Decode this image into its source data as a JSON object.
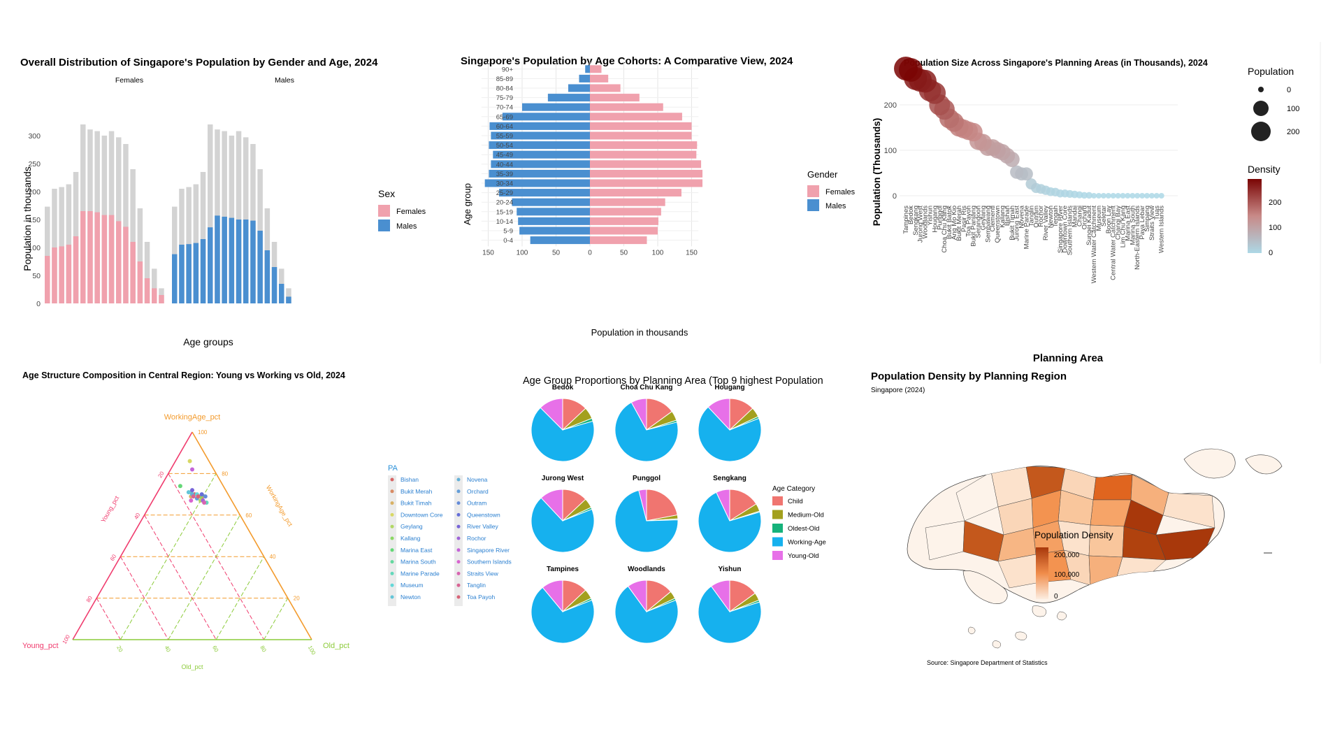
{
  "colors": {
    "female": "#F0A1AD",
    "male": "#4A8FD0",
    "grey": "#D3D3D3",
    "child": "#F07570",
    "mediumold": "#A3A01E",
    "oldestold": "#16B27B",
    "working": "#16B1EE",
    "youngold": "#E770E8",
    "young_axis": "#F03C6E",
    "working_axis": "#F39B2D",
    "old_axis": "#8CCB3A",
    "map_low": "#FCEDE0",
    "map_high": "#A8380B"
  },
  "chart_data": [
    {
      "type": "bar",
      "title": "Overall Distribution of Singapore's Population by Gender and Age, 2024",
      "xlabel": "Age groups",
      "ylabel": "Population in thousands",
      "ylim": [
        0,
        330
      ],
      "yticks": [
        "0",
        "50",
        "100",
        "150",
        "200",
        "250",
        "300"
      ],
      "legend_title": "Sex",
      "legend_position": "right",
      "facets": [
        "Females",
        "Males"
      ],
      "series": [
        {
          "name": "Females",
          "values": [
            85,
            100,
            102,
            105,
            120,
            165,
            165,
            163,
            158,
            158,
            147,
            137,
            110,
            75,
            45,
            27,
            15
          ]
        },
        {
          "name": "Males",
          "values": [
            88,
            105,
            106,
            108,
            115,
            136,
            157,
            155,
            153,
            150,
            150,
            148,
            130,
            95,
            65,
            35,
            12
          ]
        }
      ],
      "totals": [
        173,
        205,
        208,
        213,
        235,
        320,
        311,
        308,
        300,
        308,
        297,
        285,
        240,
        170,
        110,
        62,
        27
      ]
    },
    {
      "type": "bar",
      "title": "Singapore's Population by Age Cohorts: A Comparative View, 2024",
      "xlabel": "Population in thousands",
      "ylabel": "Age group",
      "xlim": [
        -160,
        160
      ],
      "xticks": [
        "150",
        "100",
        "50",
        "0",
        "50",
        "100",
        "150"
      ],
      "legend_title": "Gender",
      "legend_position": "right",
      "categories": [
        "90+",
        "85-89",
        "80-84",
        "75-79",
        "70-74",
        "65-69",
        "60-64",
        "55-59",
        "50-54",
        "45-49",
        "40-44",
        "35-39",
        "30-34",
        "25-29",
        "20-24",
        "15-19",
        "10-14",
        "5-9",
        "0-4"
      ],
      "series": [
        {
          "name": "Females",
          "values": [
            17,
            27,
            45,
            73,
            108,
            136,
            150,
            150,
            158,
            157,
            164,
            166,
            166,
            135,
            111,
            105,
            101,
            100,
            84
          ]
        },
        {
          "name": "Males",
          "values": [
            7,
            16,
            32,
            62,
            100,
            129,
            148,
            146,
            149,
            143,
            146,
            149,
            155,
            134,
            115,
            108,
            106,
            104,
            88
          ]
        }
      ]
    },
    {
      "type": "scatter",
      "title": "Population Size Across Singapore's Planning Areas (in Thousands), 2024",
      "xlabel": "Planning Area",
      "ylabel": "Population (Thousands)",
      "ylim": [
        0,
        290
      ],
      "yticks": [
        "0",
        "100",
        "200"
      ],
      "size_legend": {
        "title": "Population",
        "labels": [
          "0",
          "100",
          "200"
        ]
      },
      "color_legend": {
        "title": "Density",
        "labels": [
          "0",
          "100",
          "200"
        ]
      },
      "x": [
        "Tampines",
        "Bedok",
        "Sengkang",
        "Jurong West",
        "Woodlands",
        "Yishun",
        "Hougang",
        "Punggol",
        "Choa Chu Kang",
        "Bukit Batok",
        "Ang Mo Kio",
        "Bukit Merah",
        "Pasir Ris",
        "Toa Payoh",
        "Bukit Panjang",
        "Serangoon",
        "Geylang",
        "Sembawang",
        "Clementi",
        "Queenstown",
        "Kallang",
        "Bishan",
        "Bukit Timah",
        "Jurong East",
        "Novena",
        "Marine Parade",
        "Tanglin",
        "Outram",
        "Rochor",
        "River Valley",
        "Newton",
        "Tengah",
        "Singapore River",
        "Downtown Core",
        "Southern Islands",
        "Mandai",
        "Changi",
        "Orchard",
        "Sungei Kadut",
        "Western Water Catchment",
        "Museum",
        "Seletar",
        "Boon Lay",
        "Central Water Catchment",
        "Changi Bay",
        "Lim Chu Kang",
        "Marina East",
        "Marina South",
        "North-Eastern Islands",
        "Paya Lebar",
        "Simpang",
        "Straits View",
        "Tuas",
        "Western Islands"
      ],
      "values": [
        280,
        277,
        258,
        254,
        252,
        232,
        226,
        200,
        190,
        170,
        162,
        151,
        147,
        143,
        140,
        120,
        117,
        106,
        106,
        100,
        96,
        88,
        80,
        52,
        48,
        48,
        26,
        17,
        15,
        12,
        9,
        8,
        5,
        5,
        4,
        3,
        2,
        1,
        1,
        0,
        0,
        0,
        0,
        0,
        0,
        0,
        0,
        0,
        0,
        0,
        0,
        0,
        0,
        0
      ]
    },
    {
      "type": "scatter",
      "title": "Age Structure Composition in Central Region: Young vs Working vs Old, 2024",
      "axes": {
        "young": "Young_pct",
        "working": "WorkingAge_pct",
        "old": "Old_pct"
      },
      "ticks": [
        "20",
        "40",
        "60",
        "80",
        "100"
      ],
      "legend_title": "PA",
      "legend_position": "right",
      "legend_col1": [
        "Bishan",
        "Bukit Merah",
        "Bukit Timah",
        "Downtown Core",
        "Geylang",
        "Kallang",
        "Marina East",
        "Marina South",
        "Marine Parade",
        "Museum",
        "Newton"
      ],
      "legend_col2": [
        "Novena",
        "Orchard",
        "Outram",
        "Queenstown",
        "River Valley",
        "Rochor",
        "Singapore River",
        "Southern Islands",
        "Straits View",
        "Tanglin",
        "Toa Payoh"
      ],
      "points": [
        {
          "y": 14,
          "w": 70,
          "o": 16
        },
        {
          "y": 12,
          "w": 68,
          "o": 20
        },
        {
          "y": 16,
          "w": 69,
          "o": 15
        },
        {
          "y": 8,
          "w": 86,
          "o": 6
        },
        {
          "y": 13,
          "w": 67,
          "o": 20
        },
        {
          "y": 12,
          "w": 69,
          "o": 19
        },
        {
          "y": 18,
          "w": 74,
          "o": 8
        },
        {
          "y": 15,
          "w": 71,
          "o": 14
        },
        {
          "y": 11,
          "w": 66,
          "o": 23
        },
        {
          "y": 13,
          "w": 70,
          "o": 17
        },
        {
          "y": 16,
          "w": 71,
          "o": 13
        },
        {
          "y": 15,
          "w": 70,
          "o": 15
        },
        {
          "y": 14,
          "w": 68,
          "o": 18
        },
        {
          "y": 10,
          "w": 69,
          "o": 21
        },
        {
          "y": 11,
          "w": 70,
          "o": 19
        },
        {
          "y": 14,
          "w": 72,
          "o": 14
        },
        {
          "y": 12,
          "w": 67,
          "o": 21
        },
        {
          "y": 9,
          "w": 82,
          "o": 9
        },
        {
          "y": 17,
          "w": 67,
          "o": 16
        },
        {
          "y": 12,
          "w": 66,
          "o": 22
        },
        {
          "y": 15,
          "w": 69,
          "o": 16
        },
        {
          "y": 13,
          "w": 69,
          "o": 18
        }
      ]
    },
    {
      "type": "pie",
      "title": "Age Group Proportions by Planning Area (Top 9 highest Population",
      "legend_title": "Age Category",
      "legend_position": "right",
      "categories": [
        "Child",
        "Medium-Old",
        "Oldest-Old",
        "Working-Age",
        "Young-Old"
      ],
      "panels": [
        {
          "name": "Bedok",
          "values": [
            13,
            6,
            1.5,
            67,
            12.5
          ]
        },
        {
          "name": "Choa Chu Kang",
          "values": [
            15,
            5,
            1,
            71,
            8
          ]
        },
        {
          "name": "Hougang",
          "values": [
            13,
            5,
            1,
            69,
            12
          ]
        },
        {
          "name": "Jurong West",
          "values": [
            13,
            5,
            1,
            69,
            12
          ]
        },
        {
          "name": "Punggol",
          "values": [
            22,
            2,
            0.5,
            71.5,
            4
          ]
        },
        {
          "name": "Sengkang",
          "values": [
            16,
            4,
            0.5,
            72.5,
            7
          ]
        },
        {
          "name": "Tampines",
          "values": [
            13,
            5,
            1,
            70,
            11
          ]
        },
        {
          "name": "Woodlands",
          "values": [
            14,
            4,
            1,
            71,
            10
          ]
        },
        {
          "name": "Yishun",
          "values": [
            15,
            4,
            1,
            70,
            10
          ]
        }
      ]
    },
    {
      "type": "heatmap",
      "title": "Population Density by Planning Region",
      "subtitle": "Singapore (2024)",
      "legend_title": "Population Density",
      "legend_labels": [
        "200,000",
        "100,000",
        "0"
      ],
      "caption": "Source: Singapore Department of Statistics"
    }
  ]
}
